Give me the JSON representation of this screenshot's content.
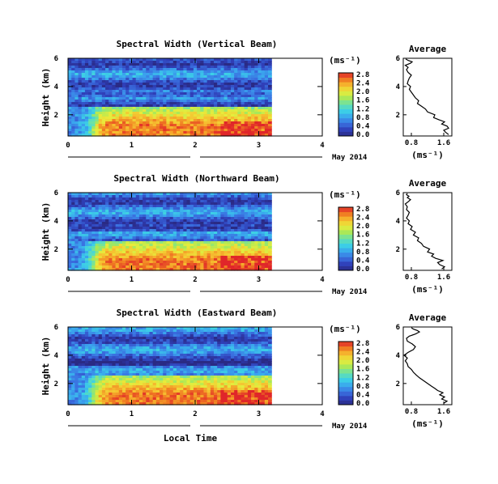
{
  "chart_data": [
    {
      "type": "heatmap",
      "title": "Spectral Width (Vertical Beam)",
      "ylabel": "Height (km)",
      "ylim": [
        0.5,
        6
      ],
      "yticks": [
        "2",
        "4",
        "6"
      ],
      "xlim": [
        0,
        4
      ],
      "xticks": [
        "0",
        "1",
        "2",
        "3",
        "4"
      ],
      "date_ticks": [
        "4"
      ],
      "date_label": "May 2014",
      "data_xmax": 3.2,
      "colorbar_unit": "(ms⁻¹)",
      "colorbar_ticks": [
        "0.0",
        "0.4",
        "0.8",
        "1.2",
        "1.6",
        "2.0",
        "2.4",
        "2.8"
      ],
      "profile_title": "Average",
      "profile_xlabel": "(ms⁻¹)",
      "profile_xticks": [
        "0.8",
        "1.6"
      ],
      "profile_yticks": [
        "2",
        "4",
        "6"
      ],
      "profile_x": [
        1.72,
        1.65,
        1.6,
        1.72,
        1.68,
        1.55,
        1.62,
        1.48,
        1.35,
        1.38,
        1.2,
        1.15,
        1.05,
        0.95,
        0.98,
        0.9,
        0.85,
        0.8,
        0.75,
        0.78,
        0.7,
        0.72,
        0.75,
        0.8,
        0.72,
        0.68,
        0.72,
        0.65,
        0.78,
        0.82,
        0.72,
        0.66
      ],
      "profile_h": [
        0.6,
        0.75,
        0.9,
        1.05,
        1.2,
        1.35,
        1.5,
        1.65,
        1.8,
        2.0,
        2.2,
        2.4,
        2.6,
        2.8,
        3.0,
        3.2,
        3.4,
        3.6,
        3.8,
        4.0,
        4.2,
        4.4,
        4.6,
        4.8,
        5.0,
        5.2,
        5.35,
        5.5,
        5.65,
        5.75,
        5.85,
        5.95
      ]
    },
    {
      "type": "heatmap",
      "title": "Spectral Width (Northward Beam)",
      "ylabel": "Height (km)",
      "ylim": [
        0.5,
        6
      ],
      "yticks": [
        "2",
        "4",
        "6"
      ],
      "xlim": [
        0,
        4
      ],
      "xticks": [
        "0",
        "1",
        "2",
        "3",
        "4"
      ],
      "date_ticks": [
        "4"
      ],
      "date_label": "May 2014",
      "data_xmax": 3.2,
      "colorbar_unit": "(ms⁻¹)",
      "colorbar_ticks": [
        "0.0",
        "0.4",
        "0.8",
        "1.2",
        "1.6",
        "2.0",
        "2.4",
        "2.8"
      ],
      "profile_title": "Average",
      "profile_xlabel": "(ms⁻¹)",
      "profile_xticks": [
        "0.8",
        "1.6"
      ],
      "profile_yticks": [
        "2",
        "4",
        "6"
      ],
      "profile_x": [
        1.55,
        1.62,
        1.5,
        1.45,
        1.58,
        1.4,
        1.3,
        1.35,
        1.2,
        1.25,
        1.1,
        1.05,
        0.95,
        0.98,
        0.85,
        0.9,
        0.78,
        0.82,
        0.72,
        0.75,
        0.68,
        0.72,
        0.75,
        0.68,
        0.7,
        0.65,
        0.72,
        0.78,
        0.7,
        0.74,
        0.68,
        0.7
      ],
      "profile_h": [
        0.6,
        0.75,
        0.9,
        1.05,
        1.2,
        1.35,
        1.5,
        1.65,
        1.8,
        2.0,
        2.2,
        2.4,
        2.6,
        2.8,
        3.0,
        3.2,
        3.4,
        3.6,
        3.8,
        4.0,
        4.2,
        4.4,
        4.6,
        4.8,
        5.0,
        5.2,
        5.35,
        5.5,
        5.65,
        5.75,
        5.85,
        5.95
      ]
    },
    {
      "type": "heatmap",
      "title": "Spectral Width (Eastward Beam)",
      "ylabel": "Height (km)",
      "ylim": [
        0.5,
        6
      ],
      "yticks": [
        "2",
        "4",
        "6"
      ],
      "xlim": [
        0,
        4
      ],
      "xticks": [
        "0",
        "1",
        "2",
        "3",
        "4"
      ],
      "date_ticks": [
        "4"
      ],
      "date_label": "May 2014",
      "xlabel": "Local Time",
      "data_xmax": 3.2,
      "colorbar_unit": "(ms⁻¹)",
      "colorbar_ticks": [
        "0.0",
        "0.4",
        "0.8",
        "1.2",
        "1.6",
        "2.0",
        "2.4",
        "2.8"
      ],
      "profile_title": "Average",
      "profile_xlabel": "(ms⁻¹)",
      "profile_xticks": [
        "0.8",
        "1.6"
      ],
      "profile_yticks": [
        "2",
        "4",
        "6"
      ],
      "profile_x": [
        1.6,
        1.68,
        1.55,
        1.62,
        1.5,
        1.58,
        1.45,
        1.38,
        1.3,
        1.2,
        1.1,
        1.0,
        0.92,
        0.85,
        0.8,
        0.72,
        0.7,
        0.65,
        0.7,
        0.62,
        0.72,
        0.85,
        0.9,
        0.82,
        0.7,
        0.68,
        0.75,
        0.9,
        1.0,
        0.95,
        0.85,
        0.8
      ],
      "profile_h": [
        0.6,
        0.75,
        0.9,
        1.05,
        1.2,
        1.35,
        1.5,
        1.65,
        1.8,
        2.0,
        2.2,
        2.4,
        2.6,
        2.8,
        3.0,
        3.2,
        3.4,
        3.6,
        3.8,
        4.0,
        4.2,
        4.4,
        4.6,
        4.8,
        5.0,
        5.2,
        5.35,
        5.5,
        5.65,
        5.75,
        5.85,
        5.95
      ]
    }
  ]
}
